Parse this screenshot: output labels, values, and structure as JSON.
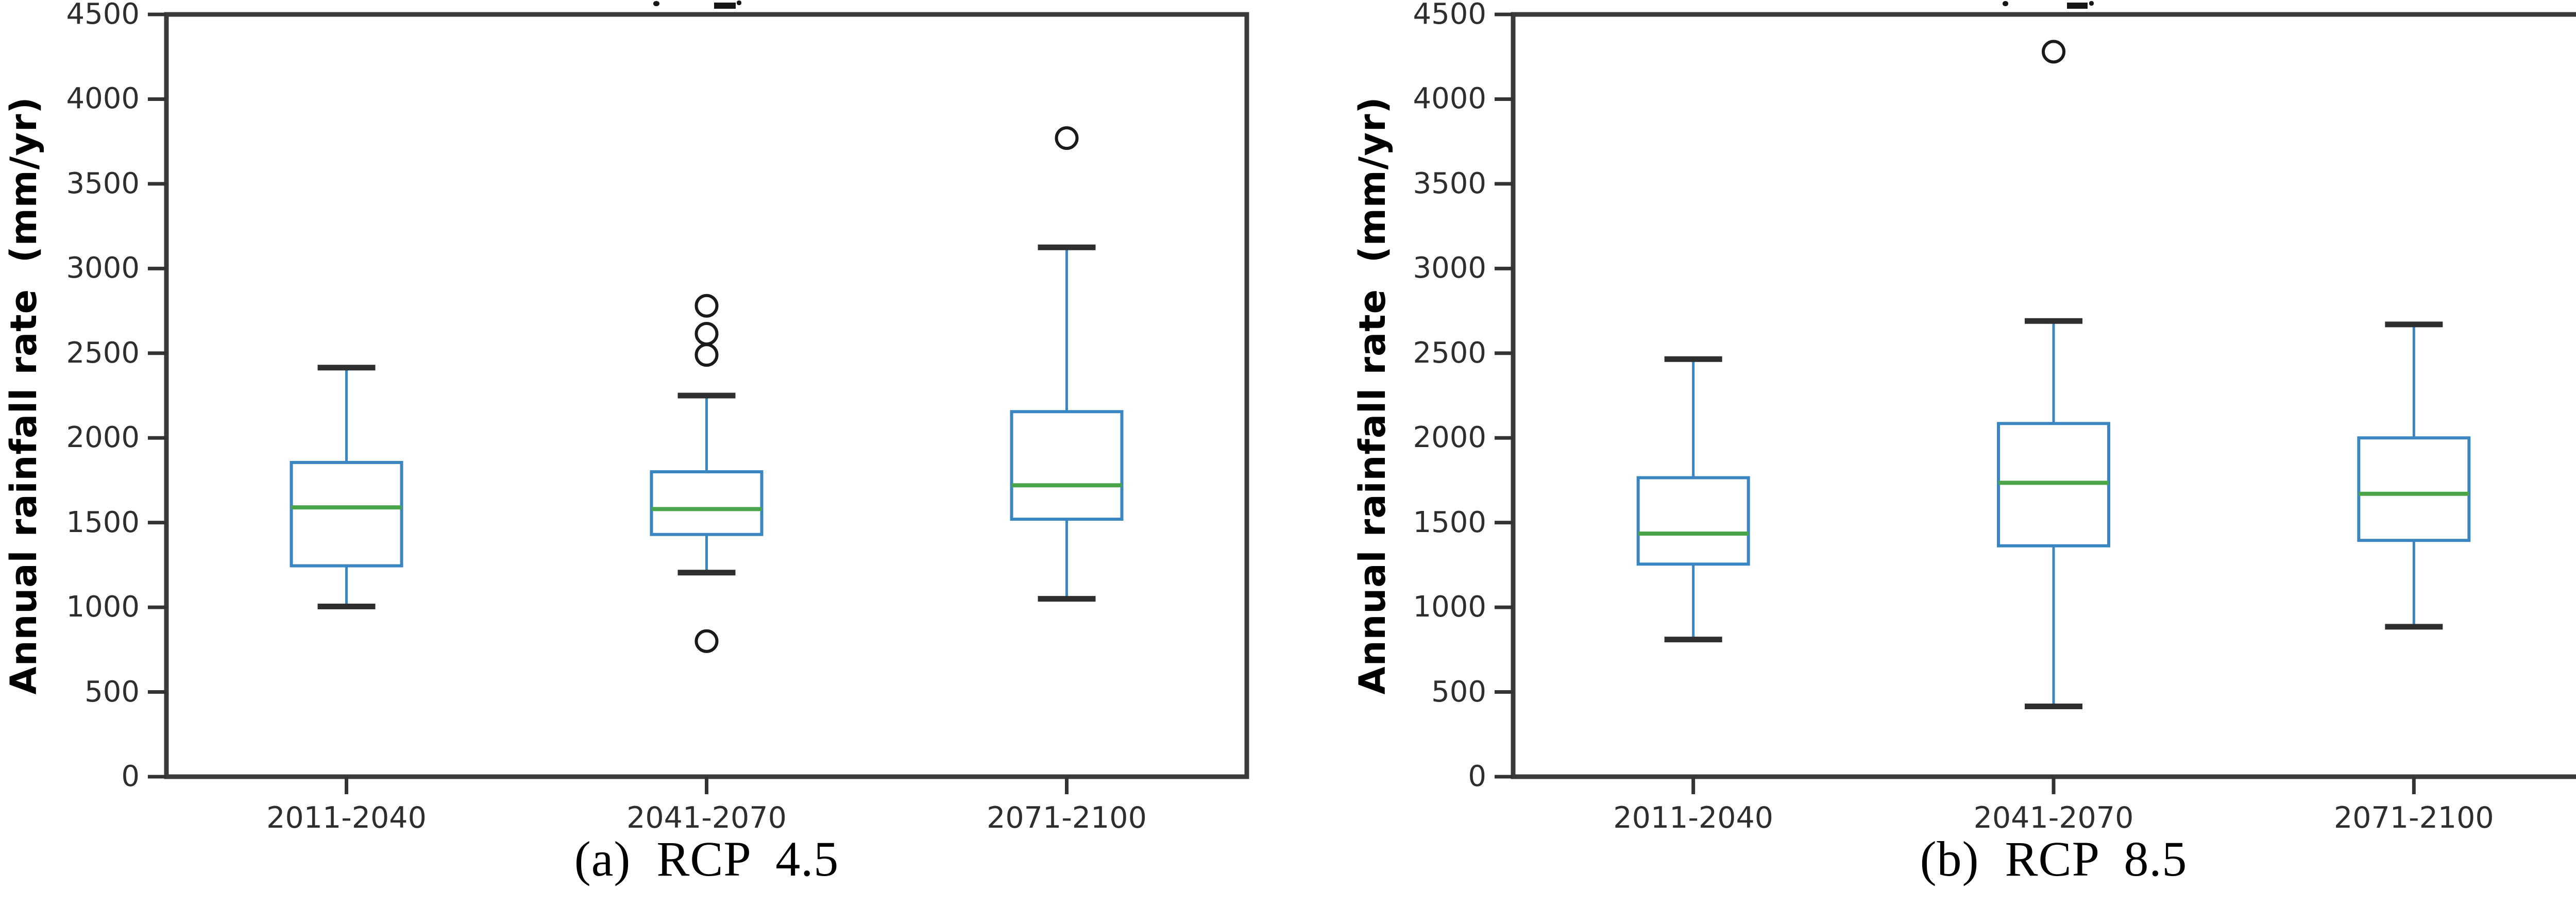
{
  "colors": {
    "box_stroke": "#3a86c0",
    "whisker_stroke": "#3a86c0",
    "median_stroke": "#4aa54a",
    "cap_stroke": "#2f2f2f",
    "outlier_stroke": "#1a1a1a",
    "spine_stroke": "#3a3a3a",
    "tick_stroke": "#333333",
    "tick_label_color": "#2e2e2e",
    "text_color": "#000000",
    "background": "#ffffff"
  },
  "chart_data": [
    {
      "type": "box",
      "title": "",
      "caption": "(a)  RCP  4.5",
      "ylabel": "Annual rainfall rate  (mm/yr)",
      "xlabel": "",
      "ylim": [
        0,
        4500
      ],
      "yticks": [
        0,
        500,
        1000,
        1500,
        2000,
        2500,
        3000,
        3500,
        4000,
        4500
      ],
      "grid": false,
      "legend": "none",
      "categories": [
        "2011-2040",
        "2041-2070",
        "2071-2100"
      ],
      "boxes": [
        {
          "category": "2011-2040",
          "whisker_low": 1005,
          "q1": 1245,
          "median": 1590,
          "q3": 1855,
          "whisker_high": 2415,
          "outliers": []
        },
        {
          "category": "2041-2070",
          "whisker_low": 1205,
          "q1": 1430,
          "median": 1580,
          "q3": 1800,
          "whisker_high": 2250,
          "outliers": [
            2780,
            2615,
            2490,
            800
          ]
        },
        {
          "category": "2071-2100",
          "whisker_low": 1050,
          "q1": 1520,
          "median": 1720,
          "q3": 2155,
          "whisker_high": 3125,
          "outliers": [
            3770
          ]
        }
      ],
      "title_fragments": [
        {
          "x": 1268,
          "y": 2,
          "w": 12,
          "h": 10,
          "kind": "dot"
        },
        {
          "x": 1386,
          "y": 5,
          "w": 42,
          "h": 12,
          "kind": "block"
        },
        {
          "x": 1430,
          "y": 1,
          "w": 9,
          "h": 9,
          "kind": "dot"
        }
      ]
    },
    {
      "type": "box",
      "title": "",
      "caption": "(b)  RCP  8.5",
      "ylabel": "Annual rainfall rate  (mm/yr)",
      "xlabel": "",
      "ylim": [
        0,
        4500
      ],
      "yticks": [
        0,
        500,
        1000,
        1500,
        2000,
        2500,
        3000,
        3500,
        4000,
        4500
      ],
      "grid": false,
      "legend": "none",
      "categories": [
        "2011-2040",
        "2041-2070",
        "2071-2100"
      ],
      "boxes": [
        {
          "category": "2011-2040",
          "whisker_low": 810,
          "q1": 1255,
          "median": 1435,
          "q3": 1765,
          "whisker_high": 2465,
          "outliers": []
        },
        {
          "category": "2041-2070",
          "whisker_low": 415,
          "q1": 1363,
          "median": 1735,
          "q3": 2085,
          "whisker_high": 2690,
          "outliers": [
            4280
          ]
        },
        {
          "category": "2071-2100",
          "whisker_low": 885,
          "q1": 1395,
          "median": 1670,
          "q3": 2000,
          "whisker_high": 2670,
          "outliers": []
        }
      ],
      "title_fragments": [
        {
          "x": 3887,
          "y": 2,
          "w": 11,
          "h": 10,
          "kind": "dot"
        },
        {
          "x": 4012,
          "y": 5,
          "w": 40,
          "h": 12,
          "kind": "block"
        },
        {
          "x": 4055,
          "y": 2,
          "w": 9,
          "h": 9,
          "kind": "dot"
        }
      ]
    }
  ]
}
